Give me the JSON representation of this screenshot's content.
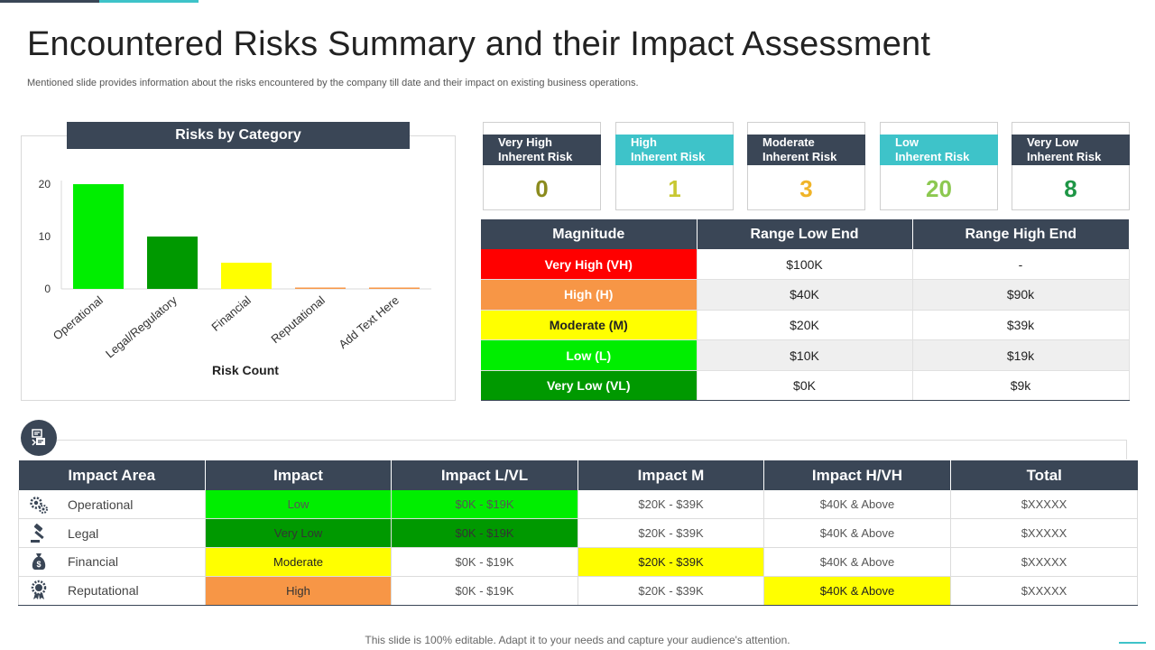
{
  "title": "Encountered Risks Summary and their Impact Assessment",
  "subtitle": "Mentioned slide provides information about the risks encountered by the company till date and their impact on existing business operations.",
  "footer": "This slide is 100% editable. Adapt it to your needs and capture your audience's attention.",
  "colors": {
    "dark": "#3a4656",
    "teal": "#3ec3c9",
    "bright_green": "#00ee00",
    "dark_green": "#009900",
    "yellow": "#ffff00",
    "orange": "#f79646",
    "red": "#ff0000"
  },
  "chart_data": {
    "type": "bar",
    "title": "Risks by Category",
    "categories": [
      "Operational",
      "Legal/Regulatory",
      "Financial",
      "Reputational",
      "Add Text Here"
    ],
    "values": [
      20,
      10,
      5,
      0,
      0
    ],
    "bar_colors": [
      "#00ee00",
      "#009900",
      "#ffff00",
      "#f79646",
      "#f79646"
    ],
    "yticks": [
      0,
      10,
      20
    ],
    "ylim": [
      0,
      20
    ],
    "xlabel": "Risk Count",
    "ylabel": ""
  },
  "risk_cards": [
    {
      "label_line1": "Very High",
      "label_line2": "Inherent Risk",
      "value": "0",
      "header_color": "#3a4656",
      "value_color": "#8b8b1e"
    },
    {
      "label_line1": "High",
      "label_line2": "Inherent Risk",
      "value": "1",
      "header_color": "#3ec3c9",
      "value_color": "#c8c832"
    },
    {
      "label_line1": "Moderate",
      "label_line2": "Inherent Risk",
      "value": "3",
      "header_color": "#3a4656",
      "value_color": "#f0b428"
    },
    {
      "label_line1": "Low",
      "label_line2": "Inherent Risk",
      "value": "20",
      "header_color": "#3ec3c9",
      "value_color": "#8cc850"
    },
    {
      "label_line1": "Very Low",
      "label_line2": "Inherent Risk",
      "value": "8",
      "header_color": "#3a4656",
      "value_color": "#1e9646"
    }
  ],
  "magnitude_table": {
    "headers": [
      "Magnitude",
      "Range Low End",
      "Range High End"
    ],
    "rows": [
      {
        "magnitude": "Very High (VH)",
        "low": "$100K",
        "high": "-",
        "bg": "#ff0000",
        "fg": "#ffffff"
      },
      {
        "magnitude": "High (H)",
        "low": "$40K",
        "high": "$90k",
        "bg": "#f79646",
        "fg": "#ffffff"
      },
      {
        "magnitude": "Moderate (M)",
        "low": "$20K",
        "high": "$39k",
        "bg": "#ffff00",
        "fg": "#222222"
      },
      {
        "magnitude": "Low (L)",
        "low": "$10K",
        "high": "$19k",
        "bg": "#00ee00",
        "fg": "#ffffff"
      },
      {
        "magnitude": "Very Low (VL)",
        "low": "$0K",
        "high": "$9k",
        "bg": "#009900",
        "fg": "#ffffff"
      }
    ]
  },
  "impact_table": {
    "headers": [
      "Impact Area",
      "Impact",
      "Impact L/VL",
      "Impact M",
      "Impact H/VH",
      "Total"
    ],
    "rows": [
      {
        "area": "Operational",
        "icon": "gears-icon",
        "impact": "Low",
        "lvl": "$0K - $19K",
        "m": "$20K - $39K",
        "hvh": "$40K & Above",
        "total": "$XXXXX"
      },
      {
        "area": "Legal",
        "icon": "gavel-icon",
        "impact": "Very Low",
        "lvl": "$0K - $19K",
        "m": "$20K - $39K",
        "hvh": "$40K & Above",
        "total": "$XXXXX"
      },
      {
        "area": "Financial",
        "icon": "money-bag-icon",
        "impact": "Moderate",
        "lvl": "$0K - $19K",
        "m": "$20K - $39K",
        "hvh": "$40K & Above",
        "total": "$XXXXX"
      },
      {
        "area": "Reputational",
        "icon": "award-icon",
        "impact": "High",
        "lvl": "$0K - $19K",
        "m": "$20K - $39K",
        "hvh": "$40K & Above",
        "total": "$XXXXX"
      }
    ]
  }
}
